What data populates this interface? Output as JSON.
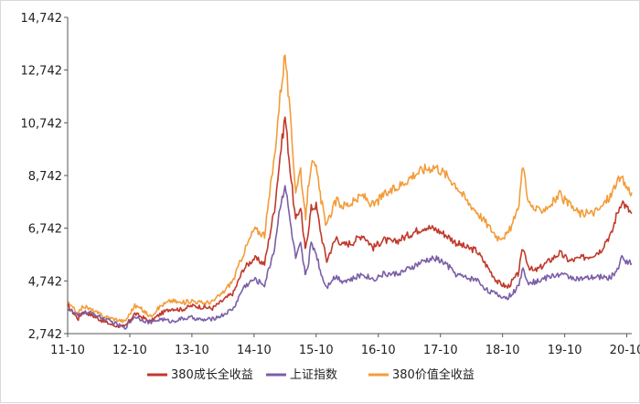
{
  "chart_data": {
    "type": "line",
    "title": "",
    "xlabel": "",
    "ylabel": "",
    "x_tick_labels": [
      "11-10",
      "12-10",
      "13-10",
      "14-10",
      "15-10",
      "16-10",
      "17-10",
      "18-10",
      "19-10",
      "20-10"
    ],
    "x_tick_years": [
      2011.75,
      2012.75,
      2013.75,
      2014.75,
      2015.75,
      2016.75,
      2017.75,
      2018.75,
      2019.75,
      2020.75
    ],
    "xlim": [
      2011.75,
      2020.83
    ],
    "y_tick_labels": [
      "2,742",
      "4,742",
      "6,742",
      "8,742",
      "10,742",
      "12,742",
      "14,742"
    ],
    "ylim": [
      2742,
      14742
    ],
    "y_step": 2000,
    "grid": false,
    "legend": "bottom",
    "series": [
      {
        "name": "380成长全收益",
        "color": "#c0392b",
        "x": [
          2011.75,
          2011.92,
          2012.0,
          2012.17,
          2012.33,
          2012.5,
          2012.67,
          2012.83,
          2012.92,
          2013.08,
          2013.25,
          2013.42,
          2013.58,
          2013.75,
          2013.92,
          2014.08,
          2014.25,
          2014.42,
          2014.58,
          2014.75,
          2014.92,
          2015.08,
          2015.17,
          2015.25,
          2015.33,
          2015.42,
          2015.5,
          2015.55,
          2015.58,
          2015.63,
          2015.67,
          2015.75,
          2015.83,
          2015.92,
          2016.0,
          2016.08,
          2016.17,
          2016.33,
          2016.5,
          2016.67,
          2016.83,
          2017.0,
          2017.17,
          2017.33,
          2017.5,
          2017.67,
          2017.83,
          2018.0,
          2018.17,
          2018.33,
          2018.5,
          2018.67,
          2018.83,
          2019.0,
          2019.08,
          2019.17,
          2019.25,
          2019.33,
          2019.5,
          2019.67,
          2019.83,
          2020.0,
          2020.17,
          2020.33,
          2020.42,
          2020.5,
          2020.58,
          2020.67,
          2020.75,
          2020.83
        ],
        "values": [
          3800,
          3300,
          3600,
          3400,
          3200,
          3050,
          3000,
          3500,
          3400,
          3200,
          3500,
          3700,
          3650,
          3800,
          3750,
          3700,
          4000,
          4300,
          5200,
          5600,
          5400,
          7500,
          9500,
          11000,
          9000,
          7000,
          7600,
          6400,
          5900,
          6800,
          7500,
          7600,
          6500,
          5500,
          6000,
          6400,
          6100,
          6200,
          6500,
          6000,
          6300,
          6200,
          6400,
          6600,
          6800,
          6700,
          6500,
          6200,
          6000,
          5900,
          5300,
          4700,
          4500,
          5000,
          6000,
          5300,
          5100,
          5200,
          5500,
          5800,
          5500,
          5600,
          5700,
          5900,
          6300,
          6500,
          7200,
          7800,
          7500,
          7300
        ]
      },
      {
        "name": "上证指数",
        "color": "#7b5ea7",
        "x": [
          2011.75,
          2011.92,
          2012.0,
          2012.17,
          2012.33,
          2012.5,
          2012.67,
          2012.83,
          2012.92,
          2013.08,
          2013.25,
          2013.42,
          2013.58,
          2013.75,
          2013.92,
          2014.08,
          2014.25,
          2014.42,
          2014.58,
          2014.75,
          2014.92,
          2015.08,
          2015.17,
          2015.25,
          2015.33,
          2015.42,
          2015.5,
          2015.55,
          2015.58,
          2015.63,
          2015.67,
          2015.75,
          2015.83,
          2015.92,
          2016.0,
          2016.08,
          2016.17,
          2016.33,
          2016.5,
          2016.67,
          2016.83,
          2017.0,
          2017.17,
          2017.33,
          2017.5,
          2017.67,
          2017.83,
          2018.0,
          2018.17,
          2018.33,
          2018.5,
          2018.67,
          2018.83,
          2019.0,
          2019.08,
          2019.17,
          2019.25,
          2019.33,
          2019.5,
          2019.67,
          2019.83,
          2020.0,
          2020.17,
          2020.33,
          2020.42,
          2020.5,
          2020.58,
          2020.67,
          2020.75,
          2020.83
        ],
        "values": [
          3700,
          3400,
          3550,
          3500,
          3300,
          3150,
          2950,
          3400,
          3300,
          3150,
          3300,
          3200,
          3300,
          3350,
          3250,
          3300,
          3450,
          3700,
          4500,
          4800,
          4600,
          6000,
          7600,
          8400,
          7000,
          5600,
          6100,
          5300,
          5000,
          5500,
          6200,
          5800,
          5000,
          4500,
          4800,
          4900,
          4750,
          4800,
          5000,
          4800,
          5000,
          5000,
          5100,
          5300,
          5500,
          5600,
          5400,
          5000,
          4850,
          4800,
          4400,
          4200,
          4100,
          4500,
          5200,
          4700,
          4700,
          4750,
          4900,
          5000,
          4900,
          4800,
          4850,
          4900,
          4850,
          4900,
          5100,
          5600,
          5500,
          5400
        ]
      },
      {
        "name": "380价值全收益",
        "color": "#f39c3a",
        "x": [
          2011.75,
          2011.92,
          2012.0,
          2012.17,
          2012.33,
          2012.5,
          2012.67,
          2012.83,
          2012.92,
          2013.08,
          2013.25,
          2013.42,
          2013.58,
          2013.75,
          2013.92,
          2014.08,
          2014.25,
          2014.42,
          2014.58,
          2014.75,
          2014.92,
          2015.08,
          2015.17,
          2015.25,
          2015.33,
          2015.42,
          2015.5,
          2015.55,
          2015.58,
          2015.63,
          2015.67,
          2015.75,
          2015.83,
          2015.92,
          2016.0,
          2016.08,
          2016.17,
          2016.33,
          2016.5,
          2016.67,
          2016.83,
          2017.0,
          2017.17,
          2017.33,
          2017.5,
          2017.67,
          2017.83,
          2018.0,
          2018.17,
          2018.33,
          2018.5,
          2018.67,
          2018.83,
          2019.0,
          2019.08,
          2019.17,
          2019.25,
          2019.33,
          2019.5,
          2019.67,
          2019.83,
          2020.0,
          2020.17,
          2020.33,
          2020.42,
          2020.5,
          2020.58,
          2020.67,
          2020.75,
          2020.83
        ],
        "values": [
          3900,
          3500,
          3800,
          3600,
          3400,
          3300,
          3200,
          3800,
          3700,
          3400,
          3800,
          4000,
          3900,
          4000,
          3900,
          3950,
          4300,
          4800,
          5800,
          6700,
          6500,
          9500,
          11800,
          13400,
          11000,
          8200,
          9000,
          7600,
          7200,
          8500,
          9200,
          9000,
          7800,
          6800,
          7400,
          7800,
          7600,
          7700,
          8000,
          7600,
          8000,
          8200,
          8500,
          8800,
          9000,
          9100,
          8800,
          8400,
          7800,
          7400,
          6900,
          6400,
          6500,
          7400,
          9200,
          7700,
          7500,
          7400,
          7600,
          8000,
          7600,
          7300,
          7300,
          7500,
          7800,
          8000,
          8500,
          8600,
          8300,
          8100
        ]
      }
    ]
  }
}
